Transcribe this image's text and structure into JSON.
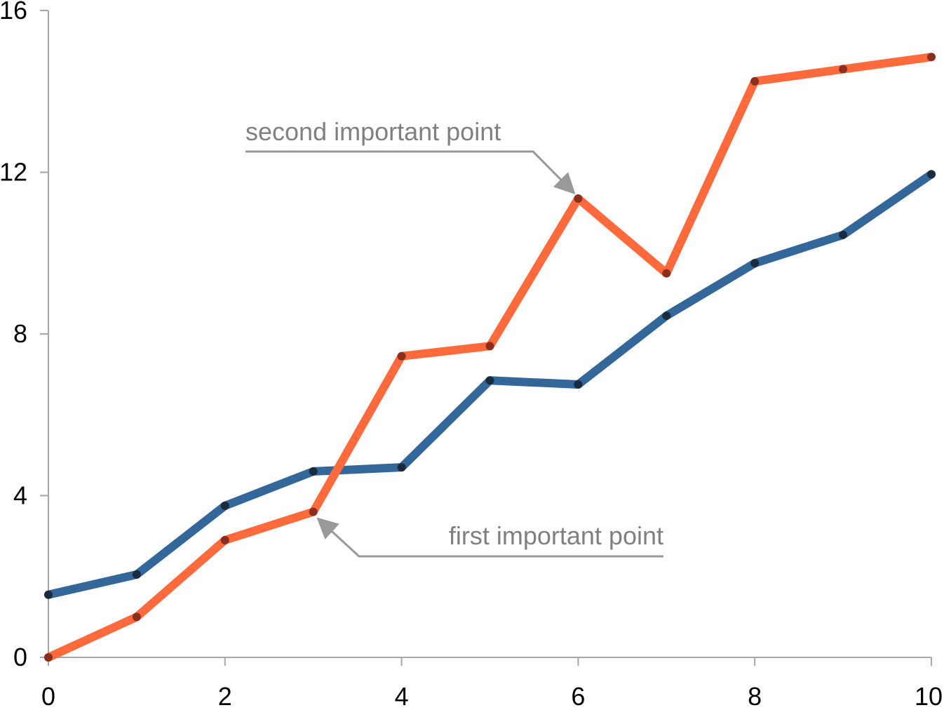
{
  "chart_data": {
    "type": "line",
    "title": "",
    "xlabel": "",
    "ylabel": "",
    "xlim": [
      0,
      10
    ],
    "ylim": [
      0,
      16
    ],
    "x_ticks": [
      0,
      2,
      4,
      6,
      8,
      10
    ],
    "y_ticks": [
      0,
      4,
      8,
      12,
      16
    ],
    "x_tick_labels": [
      "0",
      "2",
      "4",
      "6",
      "8",
      "10"
    ],
    "y_tick_labels": [
      "0",
      "4",
      "8",
      "12",
      "16"
    ],
    "grid": false,
    "legend": "none",
    "x": [
      0,
      1,
      2,
      3,
      4,
      5,
      6,
      7,
      8,
      9,
      10
    ],
    "series": [
      {
        "color": "#336699",
        "marker_color": "#1a2b3f",
        "values": [
          1.55,
          2.05,
          3.75,
          4.6,
          4.7,
          6.85,
          6.75,
          8.45,
          9.75,
          10.45,
          11.95
        ]
      },
      {
        "color": "#ff6a3d",
        "marker_color": "#8b2e1e",
        "values": [
          0.0,
          1.0,
          2.9,
          3.6,
          7.45,
          7.7,
          11.35,
          9.5,
          14.25,
          14.55,
          14.85
        ]
      }
    ],
    "annotations": [
      {
        "text": "second important point",
        "target": [
          6,
          11.35
        ]
      },
      {
        "text": "first important point",
        "target": [
          3,
          3.6
        ]
      }
    ],
    "colors": {
      "axis": "#a6a6a6",
      "annotation": "#808080",
      "leader": "#999999"
    }
  }
}
